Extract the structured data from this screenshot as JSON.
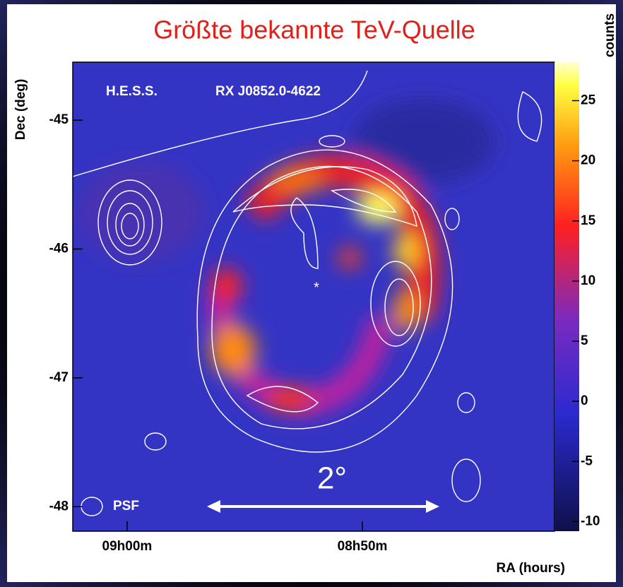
{
  "chart_data": {
    "type": "heatmap",
    "title": "Größte bekannte TeV-Quelle",
    "annotations": {
      "experiment": "H.E.S.S.",
      "source": "RX J0852.0-4622",
      "psf": "PSF",
      "scale": "2°"
    },
    "xlabel": "RA (hours)",
    "ylabel": "Dec (deg)",
    "colorbar_label": "counts",
    "xlim": [
      9.0385,
      8.6972
    ],
    "xticks": [
      {
        "value": 9.0,
        "label": "09h00m"
      },
      {
        "value": 8.8333,
        "label": "08h50m"
      }
    ],
    "ylim": [
      -48.19,
      -44.55
    ],
    "yticks": [
      -45,
      -46,
      -47,
      -48
    ],
    "clim": [
      -10.8,
      28.2
    ],
    "cticks": [
      25,
      20,
      15,
      10,
      5,
      0,
      -5,
      -10
    ]
  }
}
